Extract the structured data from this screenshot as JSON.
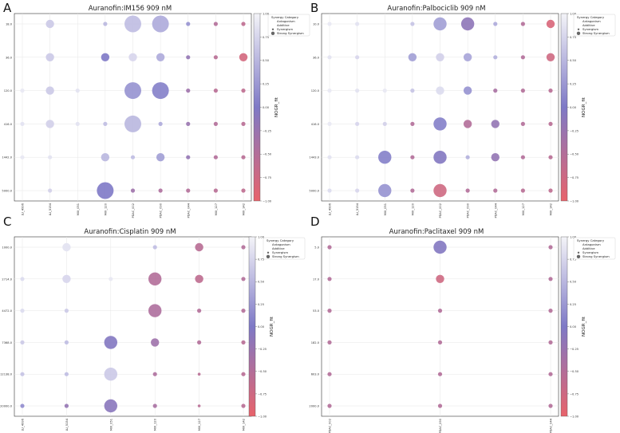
{
  "figure": {
    "colorbar_label": "NOGR_fit",
    "colorbar_ticks": [
      "1.00",
      "0.75",
      "0.50",
      "0.25",
      "0.00",
      "−0.25",
      "−0.50",
      "−0.75",
      "−1.00"
    ],
    "legend": {
      "title": "Synergy Category",
      "entries": [
        "Antagonism",
        "Additive",
        "Synergism",
        "Strong Synergism"
      ]
    },
    "colors": {
      "low": "#e8636b",
      "mid": "#7e79c6",
      "high": "#f4f4f8"
    }
  },
  "chart_data": [
    {
      "panel_letter": "A",
      "type": "scatter",
      "title": "Auranofin:IM156 909 nM",
      "categories": [
        "LU_4996",
        "LU_5154",
        "MIX_051",
        "MIX_120",
        "PDAC_002",
        "PDAC_090",
        "PDAC_044",
        "MIX_127",
        "MIX_142"
      ],
      "rows": [
        "18.0",
        "36.0",
        "120.0",
        "416.0",
        "1442.0",
        "5000.0"
      ],
      "colorbar_range": [
        -1,
        1
      ],
      "points": [
        {
          "x": 1,
          "y": 0,
          "v": 0.65,
          "s": 2
        },
        {
          "x": 3,
          "y": 0,
          "v": 0.5,
          "s": 1
        },
        {
          "x": 4,
          "y": 0,
          "v": 0.55,
          "s": 4
        },
        {
          "x": 5,
          "y": 0,
          "v": 0.4,
          "s": 4
        },
        {
          "x": 6,
          "y": 0,
          "v": 0.2,
          "s": 1
        },
        {
          "x": 7,
          "y": 0,
          "v": -0.5,
          "s": 1
        },
        {
          "x": 8,
          "y": 0,
          "v": -0.6,
          "s": 1
        },
        {
          "x": 1,
          "y": 1,
          "v": 0.65,
          "s": 2
        },
        {
          "x": 3,
          "y": 1,
          "v": 0.0,
          "s": 2
        },
        {
          "x": 4,
          "y": 1,
          "v": 0.75,
          "s": 2
        },
        {
          "x": 5,
          "y": 1,
          "v": 0.4,
          "s": 2
        },
        {
          "x": 6,
          "y": 1,
          "v": -0.2,
          "s": 1
        },
        {
          "x": 7,
          "y": 1,
          "v": -0.55,
          "s": 1
        },
        {
          "x": 8,
          "y": 1,
          "v": -0.8,
          "s": 2
        },
        {
          "x": 0,
          "y": 2,
          "v": 0.9,
          "s": 1
        },
        {
          "x": 1,
          "y": 2,
          "v": 0.65,
          "s": 2
        },
        {
          "x": 2,
          "y": 2,
          "v": 0.85,
          "s": 1
        },
        {
          "x": 4,
          "y": 2,
          "v": 0.2,
          "s": 4
        },
        {
          "x": 5,
          "y": 2,
          "v": 0.05,
          "s": 4
        },
        {
          "x": 6,
          "y": 2,
          "v": -0.3,
          "s": 1
        },
        {
          "x": 7,
          "y": 2,
          "v": -0.55,
          "s": 1
        },
        {
          "x": 8,
          "y": 2,
          "v": -0.6,
          "s": 1
        },
        {
          "x": 0,
          "y": 3,
          "v": 0.85,
          "s": 1
        },
        {
          "x": 1,
          "y": 3,
          "v": 0.7,
          "s": 2
        },
        {
          "x": 2,
          "y": 3,
          "v": 0.85,
          "s": 1
        },
        {
          "x": 3,
          "y": 3,
          "v": 0.55,
          "s": 1
        },
        {
          "x": 4,
          "y": 3,
          "v": 0.5,
          "s": 4
        },
        {
          "x": 5,
          "y": 3,
          "v": 0.4,
          "s": 1
        },
        {
          "x": 6,
          "y": 3,
          "v": -0.25,
          "s": 1
        },
        {
          "x": 7,
          "y": 3,
          "v": -0.5,
          "s": 1
        },
        {
          "x": 8,
          "y": 3,
          "v": -0.55,
          "s": 1
        },
        {
          "x": 0,
          "y": 4,
          "v": 0.9,
          "s": 1
        },
        {
          "x": 1,
          "y": 4,
          "v": 0.85,
          "s": 1
        },
        {
          "x": 3,
          "y": 4,
          "v": 0.5,
          "s": 2
        },
        {
          "x": 4,
          "y": 4,
          "v": 0.55,
          "s": 1
        },
        {
          "x": 5,
          "y": 4,
          "v": 0.3,
          "s": 2
        },
        {
          "x": 6,
          "y": 4,
          "v": -0.2,
          "s": 1
        },
        {
          "x": 7,
          "y": 4,
          "v": -0.5,
          "s": 1
        },
        {
          "x": 8,
          "y": 4,
          "v": -0.55,
          "s": 1
        },
        {
          "x": 1,
          "y": 5,
          "v": 0.7,
          "s": 1
        },
        {
          "x": 3,
          "y": 5,
          "v": 0.0,
          "s": 4
        },
        {
          "x": 4,
          "y": 5,
          "v": -0.3,
          "s": 1
        },
        {
          "x": 5,
          "y": 5,
          "v": -0.45,
          "s": 1
        },
        {
          "x": 6,
          "y": 5,
          "v": -0.5,
          "s": 1
        },
        {
          "x": 7,
          "y": 5,
          "v": -0.55,
          "s": 1
        },
        {
          "x": 8,
          "y": 5,
          "v": -0.6,
          "s": 1
        }
      ]
    },
    {
      "panel_letter": "B",
      "type": "scatter",
      "title": "Auranofin:Palbociclib 909 nM",
      "categories": [
        "LU_4996",
        "LU_5154",
        "MIX_051",
        "MIX_120",
        "PDAC_002",
        "PDAC_090",
        "PDAC_044",
        "MIX_127",
        "MIX_142"
      ],
      "rows": [
        "10.0",
        "36.0",
        "120.0",
        "416.0",
        "1443.0",
        "5000.0"
      ],
      "colorbar_range": [
        -1,
        1
      ],
      "points": [
        {
          "x": 0,
          "y": 0,
          "v": 0.9,
          "s": 1
        },
        {
          "x": 1,
          "y": 0,
          "v": 0.85,
          "s": 1
        },
        {
          "x": 3,
          "y": 0,
          "v": 0.6,
          "s": 1
        },
        {
          "x": 4,
          "y": 0,
          "v": 0.3,
          "s": 3
        },
        {
          "x": 5,
          "y": 0,
          "v": -0.15,
          "s": 3
        },
        {
          "x": 6,
          "y": 0,
          "v": 0.4,
          "s": 1
        },
        {
          "x": 7,
          "y": 0,
          "v": -0.5,
          "s": 1
        },
        {
          "x": 8,
          "y": 0,
          "v": -0.85,
          "s": 2
        },
        {
          "x": 0,
          "y": 1,
          "v": 0.85,
          "s": 1
        },
        {
          "x": 1,
          "y": 1,
          "v": 0.75,
          "s": 1
        },
        {
          "x": 3,
          "y": 1,
          "v": 0.3,
          "s": 2
        },
        {
          "x": 4,
          "y": 1,
          "v": 0.7,
          "s": 2
        },
        {
          "x": 5,
          "y": 1,
          "v": 0.35,
          "s": 2
        },
        {
          "x": 6,
          "y": 1,
          "v": 0.45,
          "s": 1
        },
        {
          "x": 7,
          "y": 1,
          "v": -0.5,
          "s": 1
        },
        {
          "x": 8,
          "y": 1,
          "v": -0.75,
          "s": 2
        },
        {
          "x": 0,
          "y": 2,
          "v": 0.9,
          "s": 1
        },
        {
          "x": 1,
          "y": 2,
          "v": 0.85,
          "s": 1
        },
        {
          "x": 2,
          "y": 2,
          "v": 0.9,
          "s": 1
        },
        {
          "x": 3,
          "y": 2,
          "v": 0.6,
          "s": 1
        },
        {
          "x": 4,
          "y": 2,
          "v": 0.8,
          "s": 2
        },
        {
          "x": 5,
          "y": 2,
          "v": 0.2,
          "s": 2
        },
        {
          "x": 6,
          "y": 2,
          "v": -0.4,
          "s": 1
        },
        {
          "x": 7,
          "y": 2,
          "v": -0.5,
          "s": 1
        },
        {
          "x": 8,
          "y": 2,
          "v": -0.55,
          "s": 1
        },
        {
          "x": 0,
          "y": 3,
          "v": 0.9,
          "s": 1
        },
        {
          "x": 1,
          "y": 3,
          "v": 0.75,
          "s": 1
        },
        {
          "x": 2,
          "y": 3,
          "v": 0.7,
          "s": 1
        },
        {
          "x": 3,
          "y": 3,
          "v": -0.5,
          "s": 1
        },
        {
          "x": 4,
          "y": 3,
          "v": 0.05,
          "s": 3
        },
        {
          "x": 5,
          "y": 3,
          "v": -0.5,
          "s": 2
        },
        {
          "x": 6,
          "y": 3,
          "v": -0.2,
          "s": 2
        },
        {
          "x": 7,
          "y": 3,
          "v": -0.5,
          "s": 1
        },
        {
          "x": 8,
          "y": 3,
          "v": -0.55,
          "s": 1
        },
        {
          "x": 0,
          "y": 4,
          "v": 0.85,
          "s": 1
        },
        {
          "x": 1,
          "y": 4,
          "v": 0.8,
          "s": 1
        },
        {
          "x": 2,
          "y": 4,
          "v": 0.05,
          "s": 3
        },
        {
          "x": 3,
          "y": 4,
          "v": -0.5,
          "s": 1
        },
        {
          "x": 4,
          "y": 4,
          "v": -0.05,
          "s": 3
        },
        {
          "x": 5,
          "y": 4,
          "v": 0.45,
          "s": 1
        },
        {
          "x": 6,
          "y": 4,
          "v": -0.2,
          "s": 2
        },
        {
          "x": 7,
          "y": 4,
          "v": -0.5,
          "s": 1
        },
        {
          "x": 8,
          "y": 4,
          "v": -0.55,
          "s": 1
        },
        {
          "x": 0,
          "y": 5,
          "v": 0.8,
          "s": 1
        },
        {
          "x": 1,
          "y": 5,
          "v": 0.75,
          "s": 1
        },
        {
          "x": 2,
          "y": 5,
          "v": 0.2,
          "s": 3
        },
        {
          "x": 3,
          "y": 5,
          "v": -0.5,
          "s": 1
        },
        {
          "x": 4,
          "y": 5,
          "v": -0.75,
          "s": 3
        },
        {
          "x": 5,
          "y": 5,
          "v": -0.5,
          "s": 1
        },
        {
          "x": 6,
          "y": 5,
          "v": -0.5,
          "s": 1
        },
        {
          "x": 7,
          "y": 5,
          "v": -0.55,
          "s": 1
        },
        {
          "x": 8,
          "y": 5,
          "v": -0.6,
          "s": 1
        }
      ]
    },
    {
      "panel_letter": "C",
      "type": "scatter",
      "title": "Auranofin:Cisplatin 909 nM",
      "categories": [
        "LU_4996",
        "LU_5154",
        "MIX_051",
        "MIX_120",
        "MIX_127",
        "MIX_142"
      ],
      "rows": [
        "1000.0",
        "2714.0",
        "4472.0",
        "7368.0",
        "12138.0",
        "20000.0"
      ],
      "colorbar_range": [
        -1,
        1
      ],
      "points": [
        {
          "x": 1,
          "y": 0,
          "v": 0.85,
          "s": 2
        },
        {
          "x": 3,
          "y": 0,
          "v": 0.55,
          "s": 1
        },
        {
          "x": 4,
          "y": 0,
          "v": -0.55,
          "s": 2
        },
        {
          "x": 5,
          "y": 0,
          "v": -0.5,
          "s": 1
        },
        {
          "x": 0,
          "y": 1,
          "v": 0.8,
          "s": 1
        },
        {
          "x": 1,
          "y": 1,
          "v": 0.75,
          "s": 2
        },
        {
          "x": 2,
          "y": 1,
          "v": 0.9,
          "s": 1
        },
        {
          "x": 3,
          "y": 1,
          "v": -0.5,
          "s": 3
        },
        {
          "x": 4,
          "y": 1,
          "v": -0.6,
          "s": 2
        },
        {
          "x": 5,
          "y": 1,
          "v": -0.5,
          "s": 1
        },
        {
          "x": 0,
          "y": 2,
          "v": 0.8,
          "s": 1
        },
        {
          "x": 1,
          "y": 2,
          "v": 0.65,
          "s": 1
        },
        {
          "x": 3,
          "y": 2,
          "v": -0.45,
          "s": 3
        },
        {
          "x": 4,
          "y": 2,
          "v": -0.5,
          "s": 1
        },
        {
          "x": 5,
          "y": 2,
          "v": -0.5,
          "s": 1
        },
        {
          "x": 0,
          "y": 3,
          "v": 0.65,
          "s": 1
        },
        {
          "x": 1,
          "y": 3,
          "v": 0.55,
          "s": 1
        },
        {
          "x": 2,
          "y": 3,
          "v": -0.05,
          "s": 3
        },
        {
          "x": 3,
          "y": 3,
          "v": -0.3,
          "s": 2
        },
        {
          "x": 4,
          "y": 3,
          "v": -0.5,
          "s": 1
        },
        {
          "x": 5,
          "y": 3,
          "v": -0.55,
          "s": 1
        },
        {
          "x": 0,
          "y": 4,
          "v": 0.6,
          "s": 1
        },
        {
          "x": 1,
          "y": 4,
          "v": 0.55,
          "s": 1
        },
        {
          "x": 2,
          "y": 4,
          "v": 0.65,
          "s": 3
        },
        {
          "x": 3,
          "y": 4,
          "v": -0.45,
          "s": 1
        },
        {
          "x": 4,
          "y": 4,
          "v": -0.55,
          "s": 0
        },
        {
          "x": 5,
          "y": 4,
          "v": -0.55,
          "s": 1
        },
        {
          "x": 0,
          "y": 5,
          "v": 0.15,
          "s": 1
        },
        {
          "x": 1,
          "y": 5,
          "v": -0.2,
          "s": 1
        },
        {
          "x": 2,
          "y": 5,
          "v": -0.1,
          "s": 3
        },
        {
          "x": 3,
          "y": 5,
          "v": -0.4,
          "s": 1
        },
        {
          "x": 4,
          "y": 5,
          "v": -0.55,
          "s": 0
        },
        {
          "x": 5,
          "y": 5,
          "v": -0.55,
          "s": 1
        }
      ]
    },
    {
      "panel_letter": "D",
      "type": "scatter",
      "title": "Auranofin:Paclitaxel 909 nM",
      "categories": [
        "PDAC_002",
        "PDAC_090",
        "PDAC_044"
      ],
      "rows": [
        "5.0",
        "17.0",
        "53.0",
        "182.0",
        "603.0",
        "2000.0"
      ],
      "colorbar_range": [
        -1,
        1
      ],
      "points": [
        {
          "x": 0,
          "y": 0,
          "v": -0.5,
          "s": 1
        },
        {
          "x": 1,
          "y": 0,
          "v": -0.05,
          "s": 3
        },
        {
          "x": 2,
          "y": 0,
          "v": -0.5,
          "s": 1
        },
        {
          "x": 0,
          "y": 1,
          "v": -0.5,
          "s": 1
        },
        {
          "x": 1,
          "y": 1,
          "v": -0.75,
          "s": 2
        },
        {
          "x": 2,
          "y": 1,
          "v": -0.5,
          "s": 1
        },
        {
          "x": 0,
          "y": 2,
          "v": -0.5,
          "s": 1
        },
        {
          "x": 1,
          "y": 2,
          "v": -0.5,
          "s": 1
        },
        {
          "x": 2,
          "y": 2,
          "v": -0.5,
          "s": 1
        },
        {
          "x": 0,
          "y": 3,
          "v": -0.5,
          "s": 1
        },
        {
          "x": 1,
          "y": 3,
          "v": -0.5,
          "s": 1
        },
        {
          "x": 2,
          "y": 3,
          "v": -0.5,
          "s": 1
        },
        {
          "x": 0,
          "y": 4,
          "v": -0.5,
          "s": 1
        },
        {
          "x": 1,
          "y": 4,
          "v": -0.5,
          "s": 1
        },
        {
          "x": 2,
          "y": 4,
          "v": -0.5,
          "s": 1
        },
        {
          "x": 0,
          "y": 5,
          "v": -0.5,
          "s": 1
        },
        {
          "x": 1,
          "y": 5,
          "v": -0.5,
          "s": 1
        },
        {
          "x": 2,
          "y": 5,
          "v": -0.5,
          "s": 1
        }
      ]
    }
  ]
}
